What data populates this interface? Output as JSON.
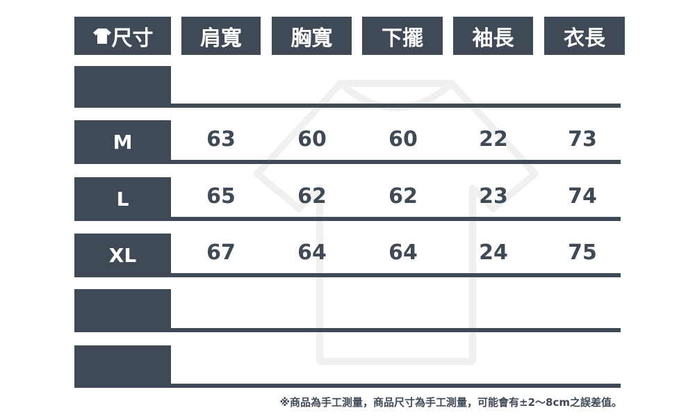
{
  "header": {
    "size_label": "尺寸",
    "columns": [
      "肩寬",
      "胸寬",
      "下擺",
      "袖長",
      "衣長"
    ]
  },
  "rows": [
    {
      "size": "",
      "values": [
        "",
        "",
        "",
        "",
        ""
      ]
    },
    {
      "size": "M",
      "values": [
        "63",
        "60",
        "60",
        "22",
        "73"
      ]
    },
    {
      "size": "L",
      "values": [
        "65",
        "62",
        "62",
        "23",
        "74"
      ]
    },
    {
      "size": "XL",
      "values": [
        "67",
        "64",
        "64",
        "24",
        "75"
      ]
    },
    {
      "size": "",
      "values": [
        "",
        "",
        "",
        "",
        ""
      ]
    },
    {
      "size": "",
      "values": [
        "",
        "",
        "",
        "",
        ""
      ]
    }
  ],
  "note": "※商品為手工測量，商品尺寸為手工測量，可能會有±2～8cm之誤差值。",
  "colors": {
    "primary": "#3f4a56",
    "background": "#ffffff"
  },
  "icons": {
    "header": "tshirt-icon",
    "watermark": "tshirt-outline"
  }
}
